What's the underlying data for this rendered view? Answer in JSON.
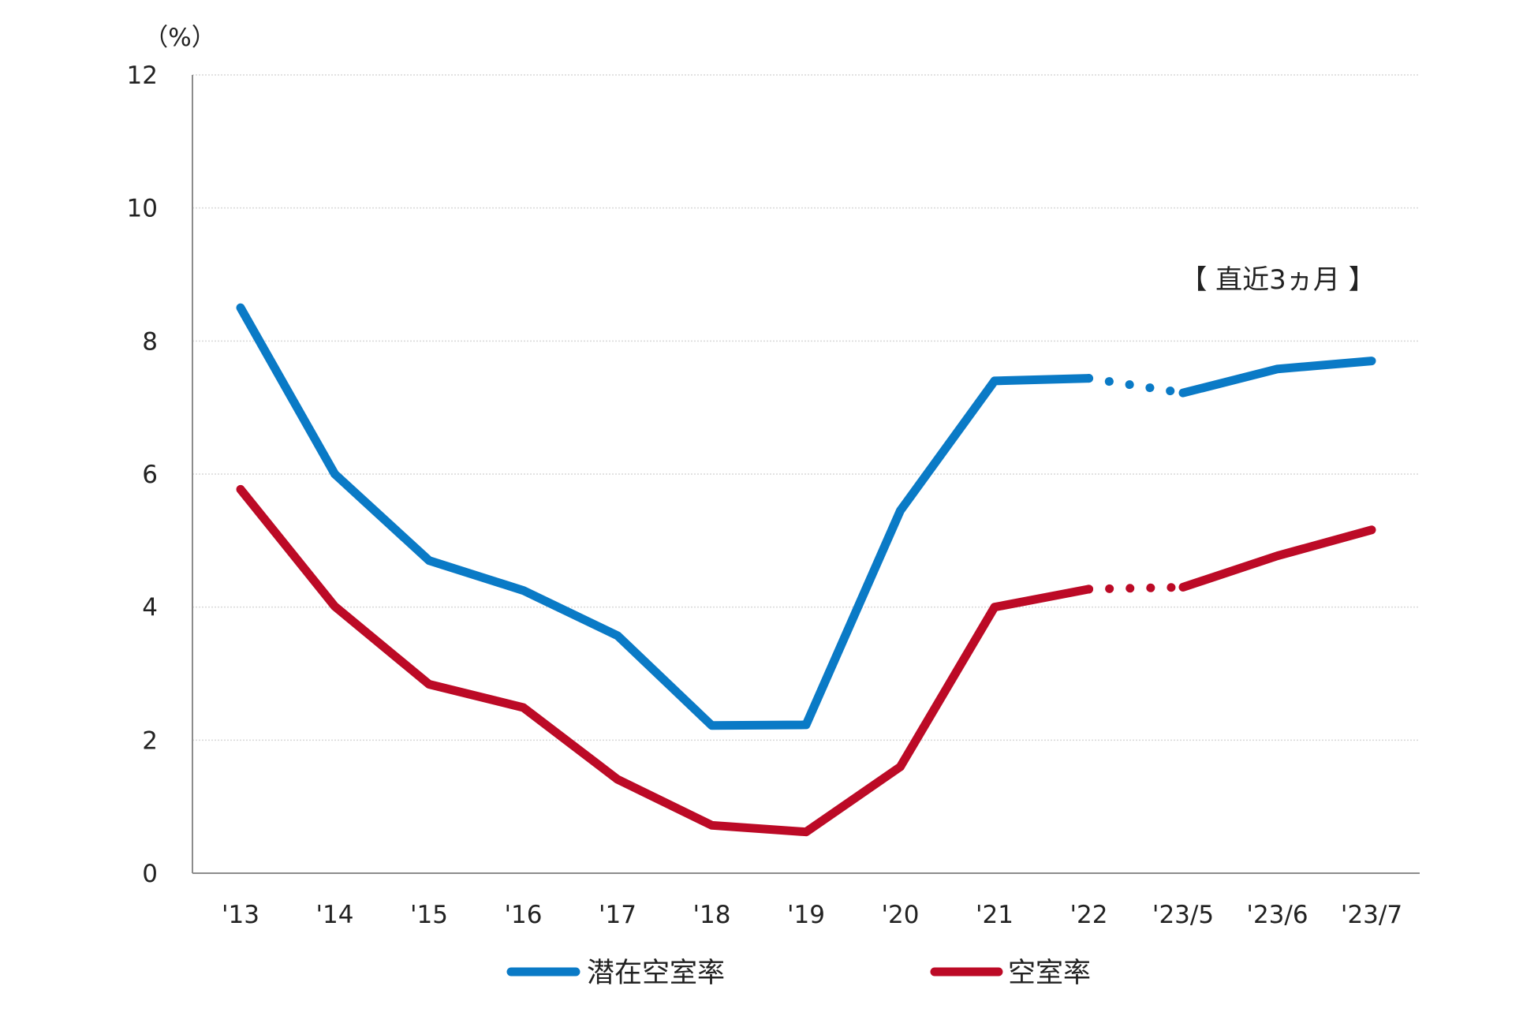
{
  "chart_data": {
    "type": "line",
    "y_unit_label": "（%）",
    "categories": [
      "'13",
      "'14",
      "'15",
      "'16",
      "'17",
      "'18",
      "'19",
      "'20",
      "'21",
      "'22",
      "'23/5",
      "'23/6",
      "'23/7"
    ],
    "ylim": [
      0,
      12
    ],
    "yticks": [
      "0",
      "2",
      "4",
      "6",
      "8",
      "10",
      "12"
    ],
    "grid": true,
    "legend_position": "bottom",
    "annotation": "【 直近3ヵ月 】",
    "series": [
      {
        "name": "潜在空室率",
        "color": "#0a7ac6",
        "values": [
          8.5,
          6.0,
          4.7,
          4.25,
          3.57,
          2.22,
          2.23,
          5.45,
          7.4,
          7.44,
          7.22,
          7.58,
          7.7
        ]
      },
      {
        "name": "空室率",
        "color": "#bc0a26",
        "values": [
          5.77,
          4.01,
          2.84,
          2.49,
          1.41,
          0.72,
          0.62,
          1.6,
          4.0,
          4.27,
          4.3,
          4.77,
          5.16
        ]
      }
    ],
    "dotted_segment_between": [
      "'22",
      "'23/5"
    ]
  }
}
